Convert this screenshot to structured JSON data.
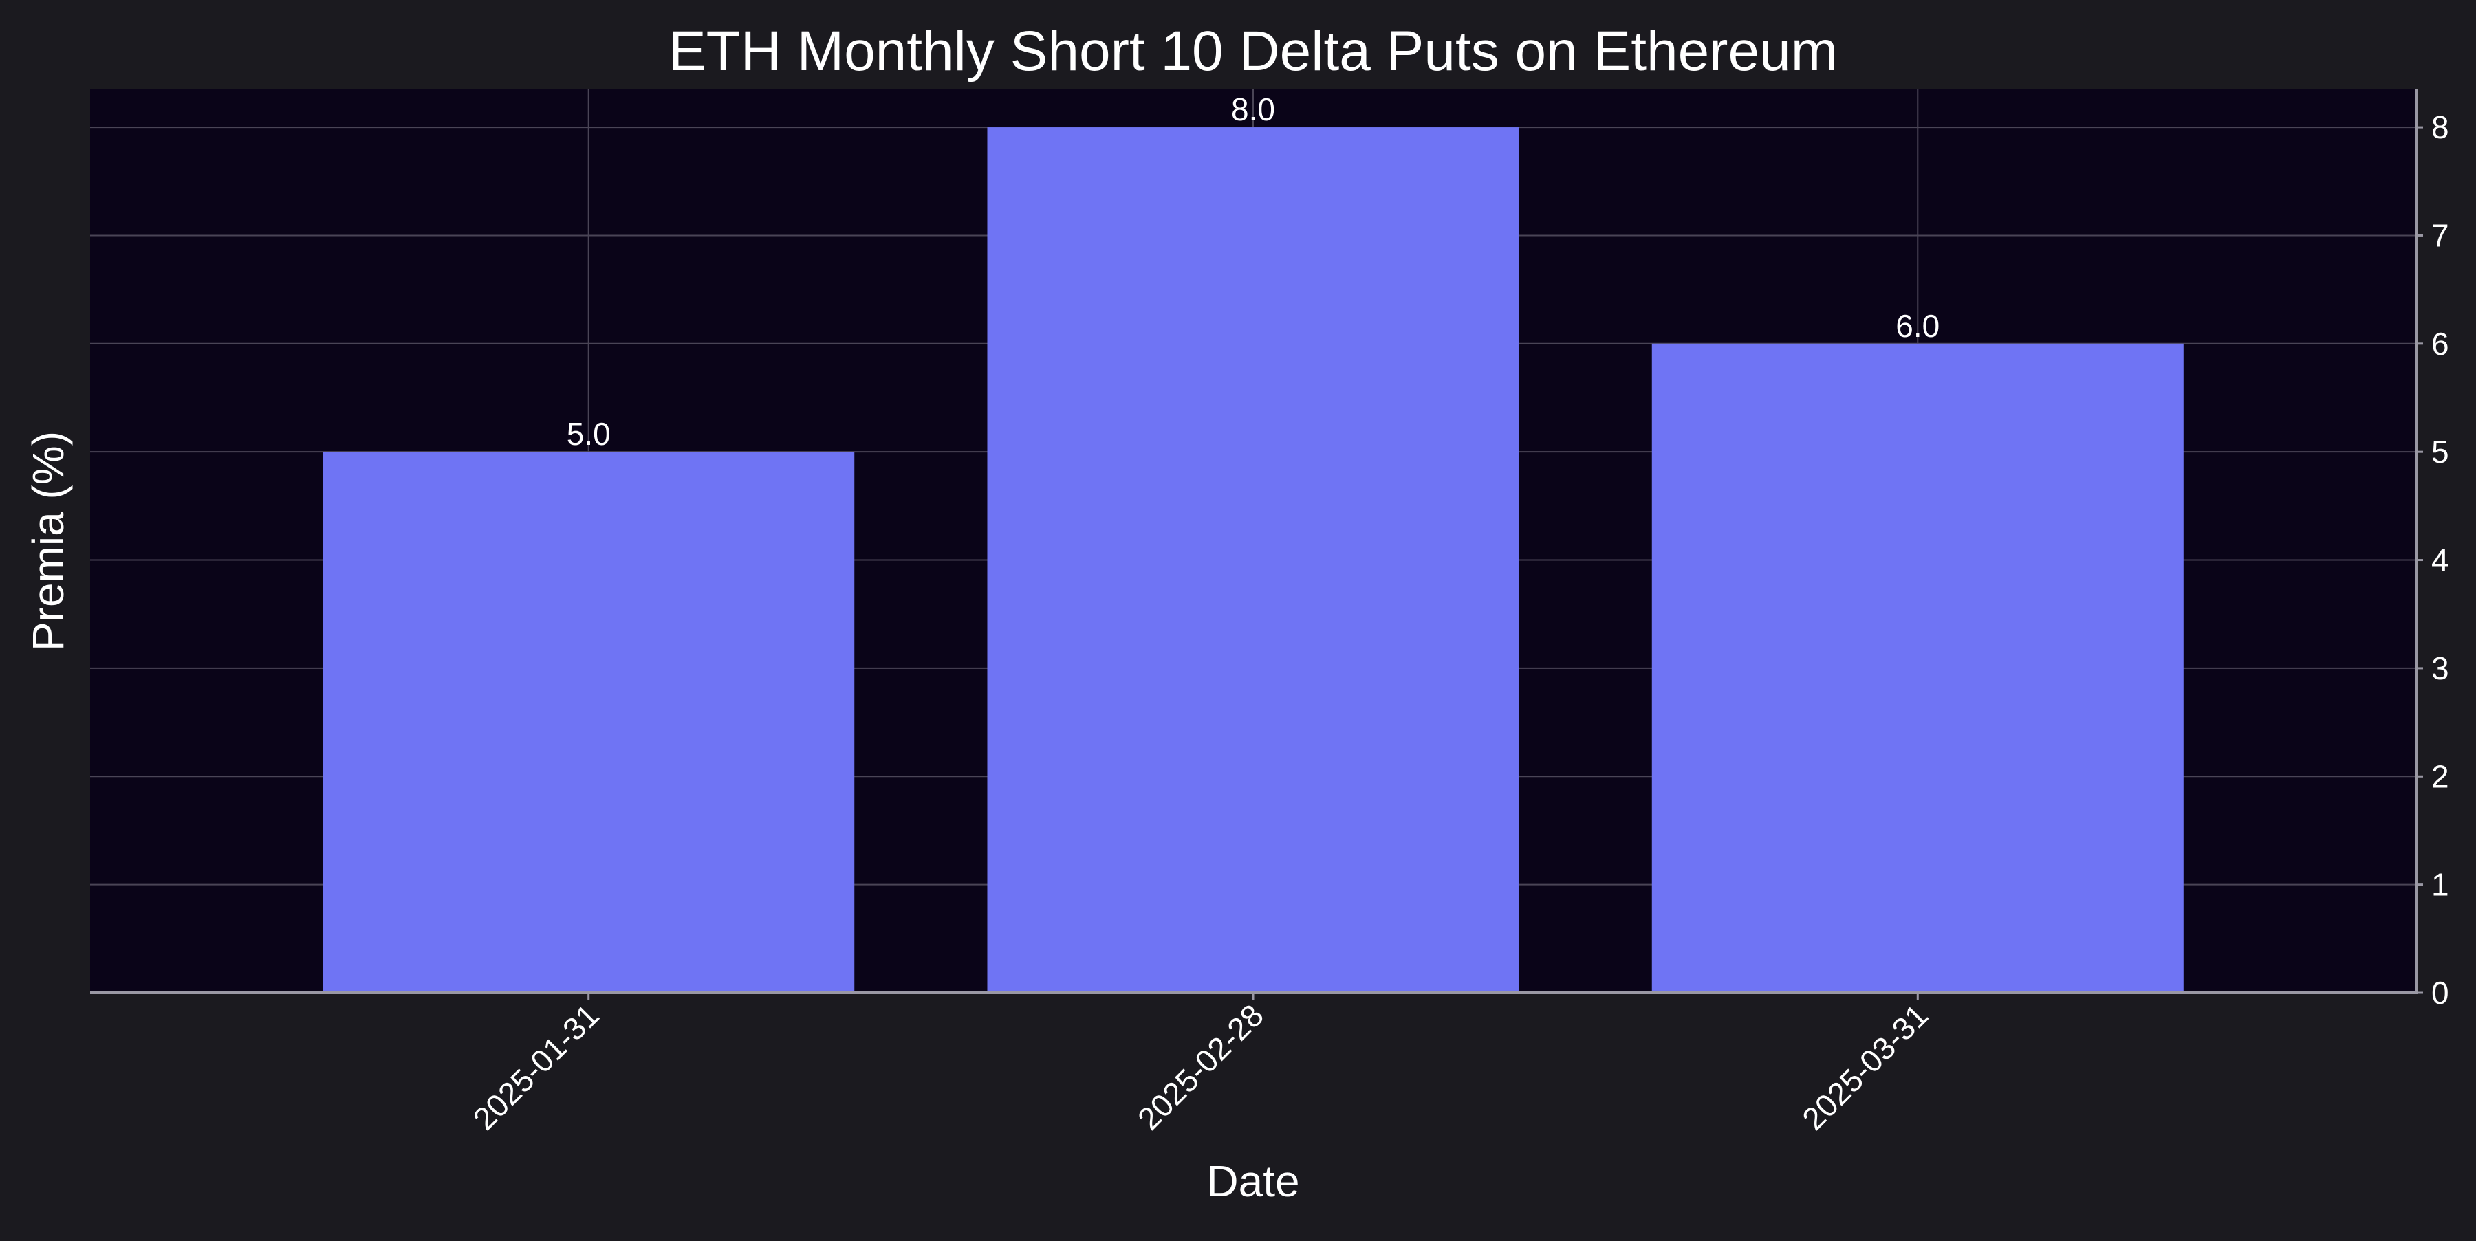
{
  "chart_data": {
    "type": "bar",
    "title": "ETH Monthly Short 10 Delta Puts on Ethereum",
    "xlabel": "Date",
    "ylabel": "Premia (%)",
    "categories": [
      "2025-01-31",
      "2025-02-28",
      "2025-03-31"
    ],
    "values": [
      5.0,
      8.0,
      6.0
    ],
    "data_labels": [
      "5.0",
      "8.0",
      "6.0"
    ],
    "ylim": [
      0,
      8.35
    ],
    "yticks": [
      0,
      1,
      2,
      3,
      4,
      5,
      6,
      7,
      8
    ],
    "y_axis_side": "right",
    "grid": true,
    "x_tick_rotation": "45 degrees",
    "colors": {
      "bar": "#6f74f4",
      "plot_background": "#0a0418",
      "figure_background": "#1b1a1f",
      "grid": "#4a4556",
      "axis_line": "#9a98a4",
      "text": "#ffffff"
    }
  }
}
